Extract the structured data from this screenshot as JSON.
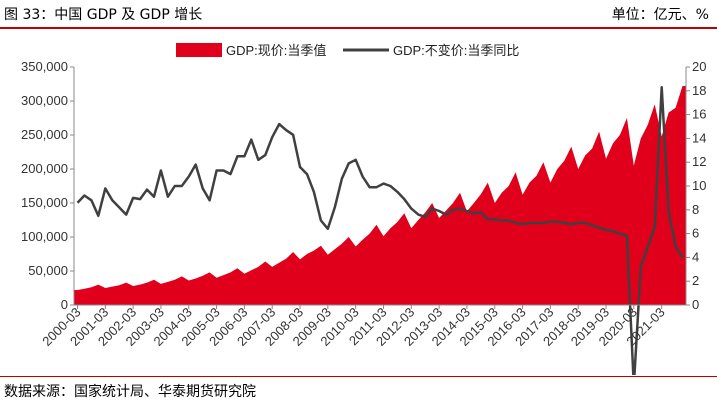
{
  "header": {
    "title": "图 33：中国 GDP 及 GDP 增长",
    "units": "单位：亿元、%"
  },
  "footer": {
    "source": "数据来源：国家统计局、华泰期货研究院"
  },
  "colors": {
    "area": "#e0001b",
    "line": "#404040",
    "rule": "#c00000"
  },
  "chart_data": {
    "type": "area",
    "legend_position": "top",
    "grid": false,
    "x_tick_labels": [
      "2000-03",
      "2001-03",
      "2002-03",
      "2003-03",
      "2004-03",
      "2005-03",
      "2006-03",
      "2007-03",
      "2008-03",
      "2009-03",
      "2010-03",
      "2011-03",
      "2012-03",
      "2013-03",
      "2014-03",
      "2015-03",
      "2016-03",
      "2017-03",
      "2018-03",
      "2019-03",
      "2020-03",
      "2021-03"
    ],
    "y_left": {
      "min": 0,
      "max": 350000,
      "step": 50000,
      "tick_labels": [
        "0",
        "50,000",
        "100,000",
        "150,000",
        "200,000",
        "250,000",
        "300,000",
        "350,000"
      ]
    },
    "y_right": {
      "min": 0,
      "max": 20,
      "step": 2,
      "tick_labels": [
        "0",
        "2",
        "4",
        "6",
        "8",
        "10",
        "12",
        "14",
        "16",
        "18",
        "20"
      ]
    },
    "series": [
      {
        "name": "GDP:现价:当季值",
        "axis": "left",
        "kind": "area",
        "values": [
          22000,
          24000,
          26000,
          30000,
          25000,
          27000,
          29000,
          33000,
          28000,
          30000,
          33000,
          37000,
          31000,
          34000,
          37000,
          42000,
          36000,
          39000,
          43000,
          48000,
          40000,
          44000,
          48000,
          54000,
          46000,
          51000,
          56000,
          64000,
          56000,
          62000,
          68000,
          78000,
          67000,
          75000,
          80000,
          87000,
          74000,
          82000,
          90000,
          100000,
          86000,
          96000,
          105000,
          118000,
          101000,
          113000,
          122000,
          135000,
          113000,
          125000,
          136000,
          150000,
          128000,
          139000,
          150000,
          165000,
          138000,
          150000,
          163000,
          180000,
          150000,
          165000,
          175000,
          195000,
          162000,
          180000,
          190000,
          210000,
          180000,
          200000,
          212000,
          233000,
          200000,
          220000,
          230000,
          255000,
          215000,
          238000,
          250000,
          275000,
          205000,
          245000,
          265000,
          295000,
          248000,
          283000,
          290000,
          322000
        ]
      },
      {
        "name": "GDP:不变价:当季同比",
        "axis": "right",
        "kind": "line",
        "values": [
          8.6,
          9.2,
          8.8,
          7.5,
          9.8,
          8.8,
          8.2,
          7.6,
          9.0,
          8.9,
          9.7,
          9.1,
          11.3,
          9.1,
          10.0,
          10.0,
          10.8,
          11.8,
          9.8,
          8.8,
          11.3,
          11.3,
          11.0,
          12.5,
          12.5,
          13.9,
          12.2,
          12.6,
          14.1,
          15.2,
          14.7,
          14.3,
          11.6,
          11.0,
          9.5,
          7.1,
          6.4,
          8.2,
          10.6,
          11.9,
          12.2,
          10.8,
          9.9,
          9.9,
          10.2,
          10.0,
          9.5,
          8.9,
          8.1,
          7.6,
          7.4,
          8.1,
          7.9,
          7.6,
          8.0,
          8.1,
          7.9,
          7.7,
          7.8,
          7.2,
          7.2,
          7.1,
          7.1,
          6.9,
          6.8,
          6.9,
          6.9,
          6.9,
          7.0,
          7.0,
          6.9,
          6.8,
          6.9,
          6.9,
          6.7,
          6.5,
          6.3,
          6.2,
          6.0,
          5.8,
          -6.8,
          3.2,
          4.9,
          6.5,
          18.3,
          7.9,
          4.9,
          4.0
        ]
      }
    ]
  }
}
